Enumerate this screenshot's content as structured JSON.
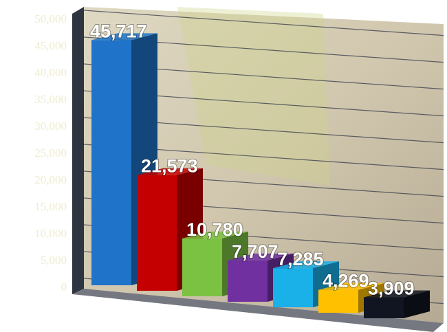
{
  "chart_data": {
    "type": "bar3d",
    "values": [
      45717,
      21573,
      10780,
      7707,
      7285,
      4269,
      3909
    ],
    "value_labels": [
      "45,717",
      "21,573",
      "10,780",
      "7,707",
      "7,285",
      "4,269",
      "3,909"
    ],
    "colors": [
      "#1f73c8",
      "#c40000",
      "#7cc242",
      "#7030a0",
      "#1ab0e8",
      "#ffc000",
      "#111522"
    ],
    "ylim": [
      0,
      50000
    ],
    "yticks": [
      0,
      {
        "value": 5000,
        "label": "5,000"
      },
      {
        "value": 10000,
        "label": "10,000"
      },
      {
        "value": 15000,
        "label": "15,000"
      },
      {
        "value": 20000,
        "label": "20,000"
      },
      {
        "value": 25000,
        "label": "25,000"
      },
      {
        "value": 30000,
        "label": "30,000"
      },
      {
        "value": 35000,
        "label": "35,000"
      },
      {
        "value": 40000,
        "label": "40,000"
      },
      {
        "value": 45000,
        "label": "45,000"
      },
      {
        "value": 50000,
        "label": "50,000"
      }
    ],
    "grid": true
  }
}
